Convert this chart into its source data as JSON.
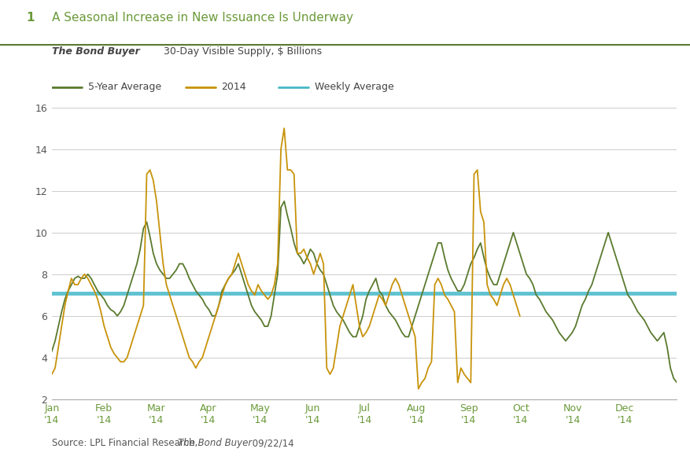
{
  "title_number": "1",
  "title": "A Seasonal Increase in New Issuance Is Underway",
  "subtitle_italic": "The Bond Buyer",
  "subtitle_rest": " 30-Day Visible Supply, $ Billions",
  "legend_entries": [
    "5-Year Average",
    "2014",
    "Weekly Average"
  ],
  "green_color": "#5a7a2e",
  "gold_color": "#c8930a",
  "cyan_color": "#45b8c8",
  "weekly_avg_value": 7.1,
  "ylim": [
    2,
    16
  ],
  "yticks": [
    2,
    4,
    6,
    8,
    10,
    12,
    14,
    16
  ],
  "title_color": "#6b9a3a",
  "axis_tick_color": "#6b9a3a",
  "bg_color": "#ffffff",
  "source_text": "Source: LPL Financial Research, ",
  "source_italic": "The Bond Buyer",
  "source_date": " 09/22/14",
  "green_data": [
    4.3,
    4.8,
    5.5,
    6.2,
    6.8,
    7.2,
    7.5,
    7.8,
    7.9,
    7.8,
    7.8,
    8.0,
    7.8,
    7.5,
    7.2,
    7.0,
    6.8,
    6.5,
    6.3,
    6.2,
    6.0,
    6.2,
    6.5,
    7.0,
    7.5,
    8.0,
    8.5,
    9.2,
    10.2,
    10.5,
    9.8,
    9.0,
    8.5,
    8.2,
    8.0,
    7.8,
    7.8,
    8.0,
    8.2,
    8.5,
    8.5,
    8.2,
    7.8,
    7.5,
    7.2,
    7.0,
    6.8,
    6.5,
    6.3,
    6.0,
    6.0,
    6.5,
    7.2,
    7.5,
    7.8,
    8.0,
    8.2,
    8.5,
    8.0,
    7.5,
    7.0,
    6.5,
    6.2,
    6.0,
    5.8,
    5.5,
    5.5,
    6.0,
    7.0,
    8.0,
    11.2,
    11.5,
    10.8,
    10.2,
    9.5,
    9.0,
    8.8,
    8.5,
    8.8,
    9.2,
    9.0,
    8.5,
    8.2,
    8.0,
    7.5,
    7.0,
    6.5,
    6.2,
    6.0,
    5.8,
    5.5,
    5.2,
    5.0,
    5.0,
    5.5,
    6.0,
    6.8,
    7.2,
    7.5,
    7.8,
    7.2,
    7.0,
    6.5,
    6.2,
    6.0,
    5.8,
    5.5,
    5.2,
    5.0,
    5.0,
    5.5,
    6.0,
    6.5,
    7.0,
    7.5,
    8.0,
    8.5,
    9.0,
    9.5,
    9.5,
    8.8,
    8.2,
    7.8,
    7.5,
    7.2,
    7.2,
    7.5,
    8.0,
    8.5,
    8.8,
    9.2,
    9.5,
    8.8,
    8.2,
    7.8,
    7.5,
    7.5,
    8.0,
    8.5,
    9.0,
    9.5,
    10.0,
    9.5,
    9.0,
    8.5,
    8.0,
    7.8,
    7.5,
    7.0,
    6.8,
    6.5,
    6.2,
    6.0,
    5.8,
    5.5,
    5.2,
    5.0,
    4.8,
    5.0,
    5.2,
    5.5,
    6.0,
    6.5,
    6.8,
    7.2,
    7.5,
    8.0,
    8.5,
    9.0,
    9.5,
    10.0,
    9.5,
    9.0,
    8.5,
    8.0,
    7.5,
    7.0,
    6.8,
    6.5,
    6.2,
    6.0,
    5.8,
    5.5,
    5.2,
    5.0,
    4.8,
    5.0,
    5.2,
    4.5,
    3.5,
    3.0,
    2.8
  ],
  "gold_data": [
    3.2,
    3.5,
    4.5,
    5.5,
    6.5,
    7.2,
    7.8,
    7.5,
    7.5,
    7.8,
    8.0,
    7.8,
    7.5,
    7.2,
    6.8,
    6.2,
    5.5,
    5.0,
    4.5,
    4.2,
    4.0,
    3.8,
    3.8,
    4.0,
    4.5,
    5.0,
    5.5,
    6.0,
    6.5,
    12.8,
    13.0,
    12.5,
    11.5,
    10.0,
    8.5,
    7.5,
    7.0,
    6.5,
    6.0,
    5.5,
    5.0,
    4.5,
    4.0,
    3.8,
    3.5,
    3.8,
    4.0,
    4.5,
    5.0,
    5.5,
    6.0,
    6.5,
    7.0,
    7.5,
    7.8,
    8.0,
    8.5,
    9.0,
    8.5,
    8.0,
    7.5,
    7.2,
    7.0,
    7.5,
    7.2,
    7.0,
    6.8,
    7.0,
    7.5,
    8.5,
    14.0,
    15.0,
    13.0,
    13.0,
    12.8,
    9.0,
    9.0,
    9.2,
    8.8,
    8.5,
    8.0,
    8.5,
    9.0,
    8.5,
    3.5,
    3.2,
    3.5,
    4.5,
    5.5,
    6.0,
    6.5,
    7.0,
    7.5,
    6.5,
    5.5,
    5.0,
    5.2,
    5.5,
    6.0,
    6.5,
    7.0,
    6.8,
    6.5,
    7.0,
    7.5,
    7.8,
    7.5,
    7.0,
    6.5,
    6.0,
    5.5,
    5.0,
    2.5,
    2.8,
    3.0,
    3.5,
    3.8,
    7.5,
    7.8,
    7.5,
    7.0,
    6.8,
    6.5,
    6.2,
    2.8,
    3.5,
    3.2,
    3.0,
    2.8,
    12.8,
    13.0,
    11.0,
    10.5,
    7.5,
    7.0,
    6.8,
    6.5,
    7.0,
    7.5,
    7.8,
    7.5,
    7.0,
    6.5,
    6.0,
    null,
    null,
    null,
    null,
    null,
    null,
    null,
    null,
    null,
    null,
    null,
    null,
    null,
    null,
    null,
    null,
    null,
    null,
    null,
    null,
    null,
    null,
    null,
    null,
    null,
    null,
    null,
    null,
    null,
    null,
    null,
    null,
    null,
    null,
    null,
    null,
    null,
    null,
    null,
    null,
    null,
    null,
    null,
    null,
    null,
    null,
    null,
    null
  ]
}
